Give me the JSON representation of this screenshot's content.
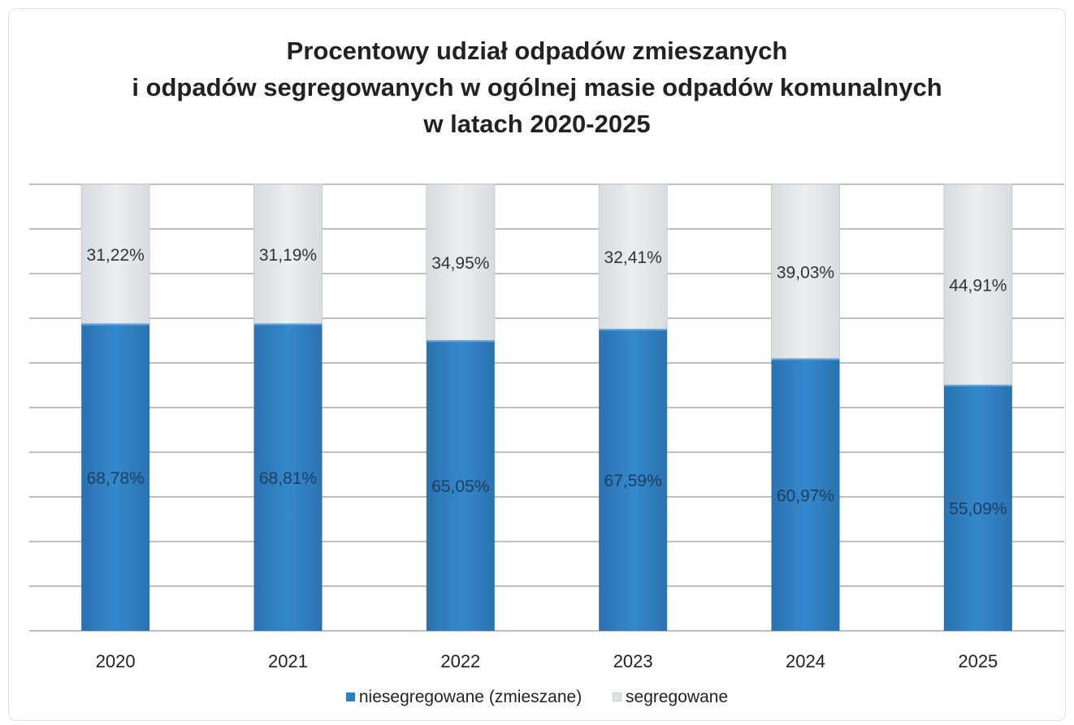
{
  "chart_data": {
    "type": "bar",
    "stacked": true,
    "title": [
      "Procentowy udział odpadów zmieszanych",
      "i odpadów segregowanych w ogólnej masie odpadów komunalnych",
      "w latach 2020-2025"
    ],
    "categories": [
      "2020",
      "2021",
      "2022",
      "2023",
      "2024",
      "2025"
    ],
    "series": [
      {
        "name": "niesegregowane (zmieszane)",
        "values": [
          68.78,
          68.81,
          65.05,
          67.59,
          60.97,
          55.09
        ],
        "labels": [
          "68,78%",
          "68,81%",
          "65,05%",
          "67,59%",
          "60,97%",
          "55,09%"
        ],
        "color": "#2e7fc1"
      },
      {
        "name": "segregowane",
        "values": [
          31.22,
          31.19,
          34.95,
          32.41,
          39.03,
          44.91
        ],
        "labels": [
          "31,22%",
          "31,19%",
          "34,95%",
          "32,41%",
          "39,03%",
          "44,91%"
        ],
        "color": "#e5e8ea"
      }
    ],
    "ylim": [
      0,
      100
    ],
    "grid": true,
    "legend_position": "bottom"
  }
}
